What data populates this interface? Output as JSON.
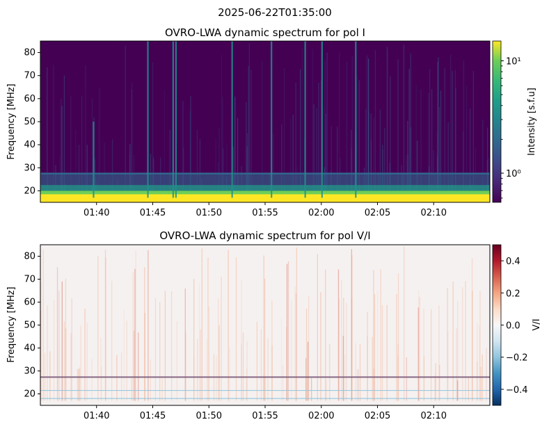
{
  "suptitle": "2025-06-22T01:35:00",
  "chart_data": [
    {
      "type": "heatmap",
      "title": "OVRO-LWA dynamic spectrum for pol I",
      "ylabel": "Frequency [MHz]",
      "xlabel": "",
      "x_start": "2025-06-22T01:35:00",
      "x_end": "2025-06-22T02:15:00",
      "x_ticks": [
        "01:40",
        "01:45",
        "01:50",
        "01:55",
        "02:00",
        "02:05",
        "02:10"
      ],
      "x_tick_minutes": [
        5,
        10,
        15,
        20,
        25,
        30,
        35
      ],
      "ylim": [
        15,
        85
      ],
      "y_ticks": [
        20,
        30,
        40,
        50,
        60,
        70,
        80
      ],
      "colormap": "viridis",
      "colorbar": {
        "label": "Intensity [s.f.u]",
        "scale": "log",
        "range": [
          0.55,
          15
        ],
        "ticks": [
          1,
          10
        ],
        "tick_labels": [
          "10⁰",
          "10¹"
        ]
      },
      "features": {
        "rfi_band_mhz": [
          15,
          20
        ],
        "band_edge_mhz": 27.5,
        "background_level": 0.6,
        "burst_times": [
          "01:39:40",
          "01:44:30",
          "01:46:45",
          "01:47:00",
          "01:52:00",
          "01:55:30",
          "01:58:30",
          "02:00:00",
          "02:03:00"
        ]
      }
    },
    {
      "type": "heatmap",
      "title": "OVRO-LWA dynamic spectrum for pol V/I",
      "ylabel": "Frequency [MHz]",
      "xlabel": "",
      "x_start": "2025-06-22T01:35:00",
      "x_end": "2025-06-22T02:15:00",
      "x_ticks": [
        "01:40",
        "01:45",
        "01:50",
        "01:55",
        "02:00",
        "02:05",
        "02:10"
      ],
      "x_tick_minutes": [
        5,
        10,
        15,
        20,
        25,
        30,
        35
      ],
      "ylim": [
        15,
        85
      ],
      "y_ticks": [
        20,
        30,
        40,
        50,
        60,
        70,
        80
      ],
      "colormap": "RdBu_r",
      "colorbar": {
        "label": "V/I",
        "scale": "linear",
        "range": [
          -0.5,
          0.5
        ],
        "ticks": [
          -0.4,
          -0.2,
          0.0,
          0.2,
          0.4
        ],
        "tick_labels": [
          "−0.4",
          "−0.2",
          "0.0",
          "0.2",
          "0.4"
        ]
      }
    }
  ]
}
